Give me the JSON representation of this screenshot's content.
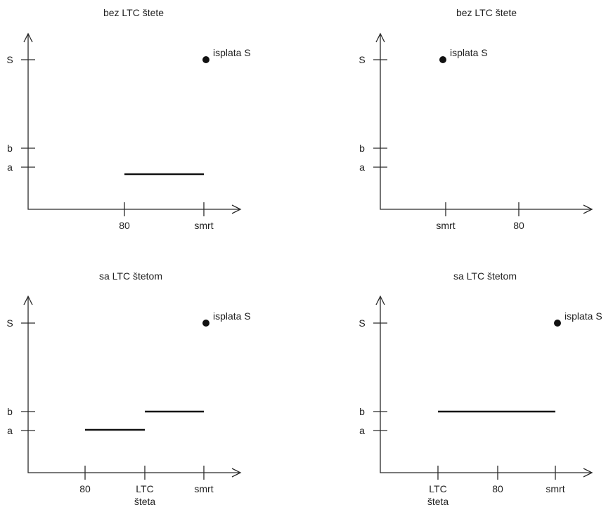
{
  "panels": [
    {
      "title": "bez LTC štete",
      "y_labels": [
        "S",
        "b",
        "a"
      ],
      "x_labels": [
        [
          "80"
        ],
        [
          "smrt"
        ]
      ],
      "point_label": "isplata S",
      "segments": [
        {
          "from": "80",
          "to": "smrt",
          "level": "a"
        }
      ],
      "point_at": "smrt"
    },
    {
      "title": "bez LTC štete",
      "y_labels": [
        "S",
        "b",
        "a"
      ],
      "x_labels": [
        [
          "smrt"
        ],
        [
          "80"
        ]
      ],
      "point_label": "isplata S",
      "segments": [],
      "point_at": "smrt"
    },
    {
      "title": "sa LTC štetom",
      "y_labels": [
        "S",
        "b",
        "a"
      ],
      "x_labels": [
        [
          "80"
        ],
        [
          "LTC",
          "šteta"
        ],
        [
          "smrt"
        ]
      ],
      "point_label": "isplata S",
      "segments": [
        {
          "from": "80",
          "to": "LTC šteta",
          "level": "a"
        },
        {
          "from": "LTC šteta",
          "to": "smrt",
          "level": "b"
        }
      ],
      "point_at": "smrt"
    },
    {
      "title": "sa LTC štetom",
      "y_labels": [
        "S",
        "b",
        "a"
      ],
      "x_labels": [
        [
          "LTC",
          "šteta"
        ],
        [
          "80"
        ],
        [
          "smrt"
        ]
      ],
      "point_label": "isplata S",
      "segments": [
        {
          "from": "LTC šteta",
          "to": "smrt",
          "level": "b"
        }
      ],
      "point_at": "smrt"
    }
  ]
}
